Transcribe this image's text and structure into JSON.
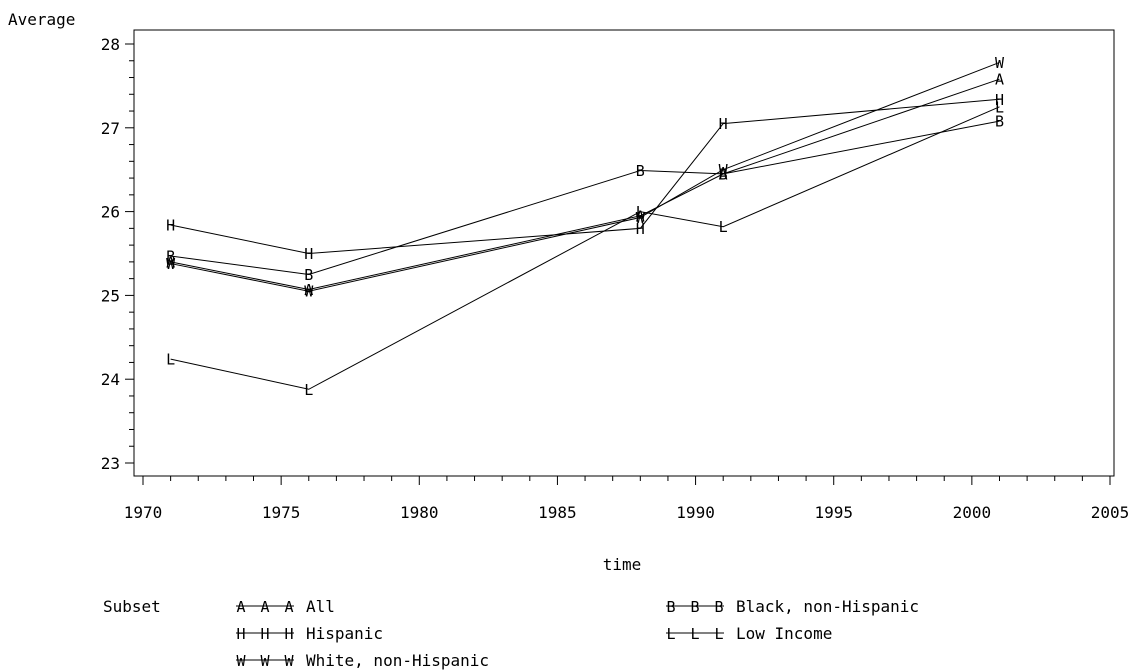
{
  "chart_data": {
    "type": "line",
    "ylabel": "Average",
    "xlabel": "time",
    "xlim": [
      1970,
      2005
    ],
    "ylim": [
      23,
      28
    ],
    "x_ticks": [
      1970,
      1975,
      1980,
      1985,
      1990,
      1995,
      2000,
      2005
    ],
    "y_ticks": [
      23,
      24,
      25,
      26,
      27,
      28
    ],
    "x_minor_step": 1,
    "y_minor_step": 0.2,
    "legend_title": "Subset",
    "legend_placement": "bottom",
    "series": [
      {
        "name": "All",
        "symbol": "A",
        "points": [
          [
            1971,
            25.4
          ],
          [
            1976,
            25.07
          ],
          [
            1988,
            25.95
          ],
          [
            1991,
            26.45
          ],
          [
            2001,
            27.58
          ]
        ]
      },
      {
        "name": "Black, non-Hispanic",
        "symbol": "B",
        "points": [
          [
            1971,
            25.47
          ],
          [
            1976,
            25.25
          ],
          [
            1988,
            26.49
          ],
          [
            1991,
            26.45
          ],
          [
            2001,
            27.08
          ]
        ]
      },
      {
        "name": "Hispanic",
        "symbol": "H",
        "points": [
          [
            1971,
            25.84
          ],
          [
            1976,
            25.5
          ],
          [
            1988,
            25.8
          ],
          [
            1991,
            27.05
          ],
          [
            2001,
            27.34
          ]
        ]
      },
      {
        "name": "Low Income",
        "symbol": "L",
        "points": [
          [
            1971,
            24.24
          ],
          [
            1976,
            23.88
          ],
          [
            1988,
            26.0
          ],
          [
            1991,
            25.82
          ],
          [
            2001,
            27.25
          ]
        ]
      },
      {
        "name": "White, non-Hispanic",
        "symbol": "W",
        "points": [
          [
            1971,
            25.38
          ],
          [
            1976,
            25.05
          ],
          [
            1988,
            25.93
          ],
          [
            1991,
            26.5
          ],
          [
            2001,
            27.78
          ]
        ]
      }
    ]
  }
}
